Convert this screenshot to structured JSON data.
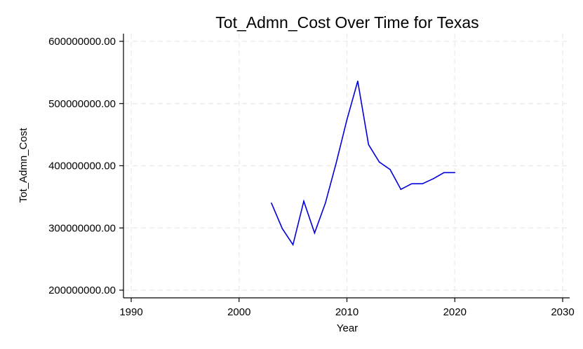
{
  "chart_data": {
    "type": "line",
    "title": "Tot_Admn_Cost Over Time for Texas",
    "xlabel": "Year",
    "ylabel": "Tot_Admn_Cost",
    "xlim": [
      1990,
      2030
    ],
    "ylim": [
      200000000,
      600000000
    ],
    "x_ticks": [
      1990,
      2000,
      2010,
      2020,
      2030
    ],
    "y_ticks": [
      200000000,
      300000000,
      400000000,
      500000000,
      600000000
    ],
    "x_tick_labels": [
      "1990",
      "2000",
      "2010",
      "2020",
      "2030"
    ],
    "y_tick_labels": [
      "200000000.00",
      "300000000.00",
      "400000000.00",
      "500000000.00",
      "600000000.00"
    ],
    "grid": true,
    "series": [
      {
        "color": "#0000dd",
        "x": [
          2003,
          2004,
          2005,
          2006,
          2007,
          2008,
          2009,
          2010,
          2011,
          2012,
          2013,
          2014,
          2015,
          2016,
          2017,
          2018,
          2019,
          2020
        ],
        "y": [
          340000000,
          299000000,
          273000000,
          343000000,
          292000000,
          340000000,
          404000000,
          474000000,
          536000000,
          434000000,
          406000000,
          394000000,
          362000000,
          371000000,
          371000000,
          379000000,
          389000000,
          389000000
        ]
      }
    ]
  }
}
